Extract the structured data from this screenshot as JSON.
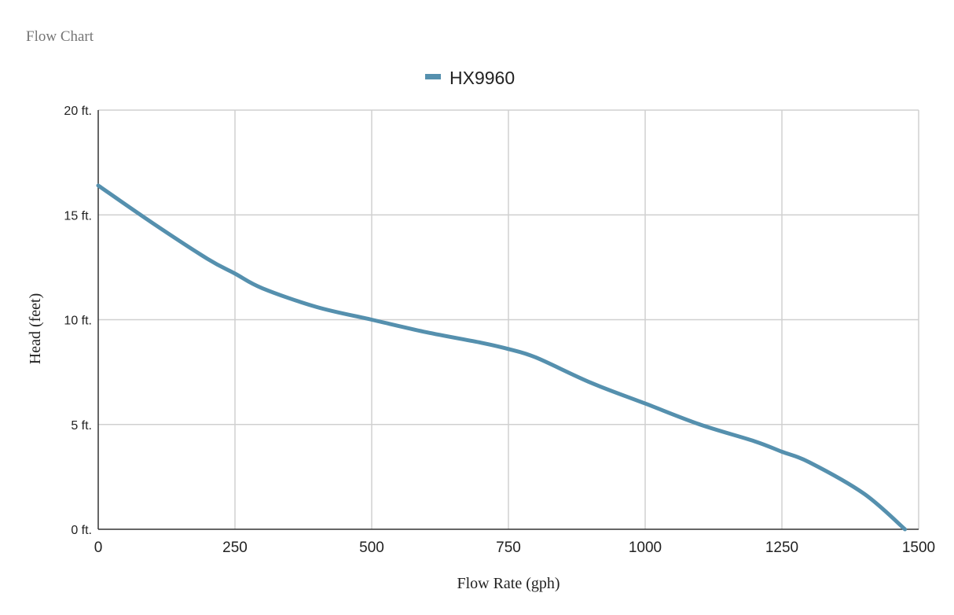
{
  "page": {
    "title": "Flow Chart"
  },
  "legend": {
    "label": "HX9960",
    "color": "#5590ae"
  },
  "axes": {
    "x_title": "Flow Rate (gph)",
    "y_title": "Head (feet)",
    "x_ticks": [
      "0",
      "250",
      "500",
      "750",
      "1000",
      "1250",
      "1500"
    ],
    "y_ticks": [
      "20 ft.",
      "15 ft.",
      "10 ft.",
      "5 ft.",
      "0 ft."
    ]
  },
  "chart_data": {
    "type": "line",
    "title": "Flow Chart",
    "xlabel": "Flow Rate (gph)",
    "ylabel": "Head (feet)",
    "xlim": [
      0,
      1500
    ],
    "ylim": [
      0,
      20
    ],
    "grid": true,
    "legend_position": "top",
    "series": [
      {
        "name": "HX9960",
        "color": "#5590ae",
        "x": [
          0,
          100,
          200,
          250,
          300,
          400,
          500,
          600,
          700,
          750,
          800,
          900,
          1000,
          1100,
          1200,
          1250,
          1300,
          1400,
          1475
        ],
        "y": [
          16.4,
          14.6,
          12.9,
          12.2,
          11.5,
          10.6,
          10.0,
          9.4,
          8.9,
          8.6,
          8.2,
          7.0,
          6.0,
          5.0,
          4.2,
          3.7,
          3.2,
          1.7,
          0.0
        ]
      }
    ]
  }
}
